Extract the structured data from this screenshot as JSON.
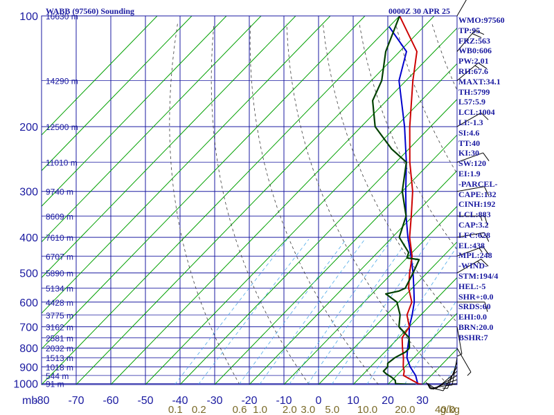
{
  "header": {
    "station": "WABB (97560) Sounding",
    "time": "0000Z 30 APR 25"
  },
  "info_panel": [
    "WMO:97560",
    "TP:95",
    "FRZ:563",
    "WB0:606",
    "PW:2.01",
    "RH:67.6",
    "MAXT:34.1",
    "TH:5799",
    "L57:5.9",
    "LCL:1004",
    "LI:-1.3",
    "SI:4.6",
    "TT:40",
    "KI:30",
    "SW:120",
    "EI:1.9",
    "-PARCEL-",
    "CAPE:132",
    "CINH:192",
    "LCL:883",
    "CAP:3.2",
    "LFC:628",
    "EL:438",
    "MPL:248",
    "-WIND-",
    "STM:194/4",
    "HEL:-5",
    "SHR+:0.0",
    "SRDS:60",
    "EHI:0.0",
    "BRN:20.0",
    "BSHR:7"
  ],
  "colors": {
    "axis": "#1a1aa0",
    "isotherm": "#00a000",
    "dry_adiabat": "#3a3a3a",
    "mixing_ratio": "#4aa8e8",
    "temperature": "#cc0000",
    "dewpoint": "#004000",
    "parcel": "#0000cc",
    "mixing_ratio_label": "#7a6a28"
  },
  "chart_data": {
    "type": "skew-t log-p sounding",
    "unit_label": "mb",
    "pressure_ticks": [
      100,
      200,
      300,
      400,
      500,
      600,
      700,
      800,
      900,
      1000
    ],
    "temperature_ticks": [
      -80,
      -70,
      -60,
      -50,
      -40,
      -30,
      -20,
      -10,
      0,
      10,
      20,
      30
    ],
    "height_labels": [
      {
        "p": 100,
        "label": "16630 m"
      },
      {
        "p": 150,
        "label": "14290 m"
      },
      {
        "p": 200,
        "label": "12500 m"
      },
      {
        "p": 250,
        "label": "11010 m"
      },
      {
        "p": 300,
        "label": "9740 m"
      },
      {
        "p": 350,
        "label": "8609 m"
      },
      {
        "p": 400,
        "label": "7610 m"
      },
      {
        "p": 450,
        "label": "6707 m"
      },
      {
        "p": 500,
        "label": "5890 m"
      },
      {
        "p": 550,
        "label": "5134 m"
      },
      {
        "p": 600,
        "label": "4428 m"
      },
      {
        "p": 650,
        "label": "3775 m"
      },
      {
        "p": 700,
        "label": "3162 m"
      },
      {
        "p": 750,
        "label": "2581 m"
      },
      {
        "p": 800,
        "label": "2032 m"
      },
      {
        "p": 850,
        "label": "1513 m"
      },
      {
        "p": 900,
        "label": "1018 m"
      },
      {
        "p": 950,
        "label": "544 m"
      },
      {
        "p": 1000,
        "label": "91 m"
      }
    ],
    "mixing_ratio_labels": [
      "0.1",
      "0.2",
      "0.6",
      "1.0",
      "2.0",
      "3.0",
      "5.0",
      "10.0",
      "20.0",
      "40.0"
    ],
    "mixing_ratio_unit": "g/kg",
    "series": [
      {
        "key": "temperature",
        "values": [
          [
            1006,
            30
          ],
          [
            1000,
            28.6
          ],
          [
            950,
            22
          ],
          [
            925,
            21
          ],
          [
            900,
            19.5
          ],
          [
            850,
            17
          ],
          [
            800,
            14
          ],
          [
            750,
            11
          ],
          [
            700,
            10
          ],
          [
            650,
            6
          ],
          [
            600,
            3.8
          ],
          [
            550,
            -1
          ],
          [
            500,
            -5
          ],
          [
            450,
            -9
          ],
          [
            400,
            -15
          ],
          [
            350,
            -20.5
          ],
          [
            300,
            -27
          ],
          [
            250,
            -36
          ],
          [
            200,
            -46
          ],
          [
            150,
            -58
          ],
          [
            125,
            -65
          ],
          [
            100,
            -80
          ]
        ]
      },
      {
        "key": "dewpoint",
        "values": [
          [
            1006,
            28
          ],
          [
            1000,
            22
          ],
          [
            980,
            21
          ],
          [
            960,
            19
          ],
          [
            940,
            16.5
          ],
          [
            925,
            15
          ],
          [
            900,
            15
          ],
          [
            880,
            14
          ],
          [
            850,
            14.5
          ],
          [
            820,
            16
          ],
          [
            800,
            16
          ],
          [
            750,
            13
          ],
          [
            700,
            7
          ],
          [
            650,
            4
          ],
          [
            600,
            -0.5
          ],
          [
            570,
            -6
          ],
          [
            560,
            -3
          ],
          [
            550,
            -2
          ],
          [
            500,
            -4
          ],
          [
            460,
            -6
          ],
          [
            455,
            -10
          ],
          [
            440,
            -11
          ],
          [
            400,
            -18
          ],
          [
            350,
            -22
          ],
          [
            300,
            -30
          ],
          [
            250,
            -37
          ],
          [
            230,
            -45
          ],
          [
            200,
            -56
          ],
          [
            170,
            -64
          ],
          [
            150,
            -67
          ],
          [
            125,
            -74
          ],
          [
            100,
            -80
          ]
        ]
      },
      {
        "key": "parcel",
        "values": [
          [
            1006,
            29
          ],
          [
            1000,
            28.4
          ],
          [
            950,
            25.5
          ],
          [
            900,
            21.5
          ],
          [
            850,
            18
          ],
          [
            800,
            15.5
          ],
          [
            750,
            13
          ],
          [
            700,
            10
          ],
          [
            650,
            7.5
          ],
          [
            600,
            4.5
          ],
          [
            550,
            0.5
          ],
          [
            500,
            -4
          ],
          [
            450,
            -9.3
          ],
          [
            400,
            -15.5
          ],
          [
            350,
            -22
          ],
          [
            300,
            -29
          ],
          [
            250,
            -37
          ],
          [
            200,
            -47.5
          ],
          [
            150,
            -62
          ],
          [
            125,
            -68
          ],
          [
            107,
            -80
          ]
        ]
      }
    ],
    "wind_barbs": [
      {
        "p": 1000,
        "dir": 260,
        "spd": 5
      },
      {
        "p": 975,
        "dir": 250,
        "spd": 8
      },
      {
        "p": 950,
        "dir": 240,
        "spd": 10
      },
      {
        "p": 925,
        "dir": 230,
        "spd": 10
      },
      {
        "p": 900,
        "dir": 210,
        "spd": 10
      },
      {
        "p": 875,
        "dir": 200,
        "spd": 8
      },
      {
        "p": 850,
        "dir": 190,
        "spd": 5
      },
      {
        "p": 800,
        "dir": 150,
        "spd": 5
      },
      {
        "p": 700,
        "dir": 170,
        "spd": 5
      },
      {
        "p": 600,
        "dir": 90,
        "spd": 10
      },
      {
        "p": 500,
        "dir": 60,
        "spd": 15
      },
      {
        "p": 450,
        "dir": 70,
        "spd": 15
      },
      {
        "p": 400,
        "dir": 80,
        "spd": 15
      },
      {
        "p": 350,
        "dir": 90,
        "spd": 15
      },
      {
        "p": 300,
        "dir": 80,
        "spd": 10
      },
      {
        "p": 250,
        "dir": 70,
        "spd": 10
      },
      {
        "p": 200,
        "dir": 60,
        "spd": 10
      },
      {
        "p": 150,
        "dir": 50,
        "spd": 15
      },
      {
        "p": 125,
        "dir": 40,
        "spd": 20
      },
      {
        "p": 100,
        "dir": 30,
        "spd": 20
      }
    ]
  }
}
